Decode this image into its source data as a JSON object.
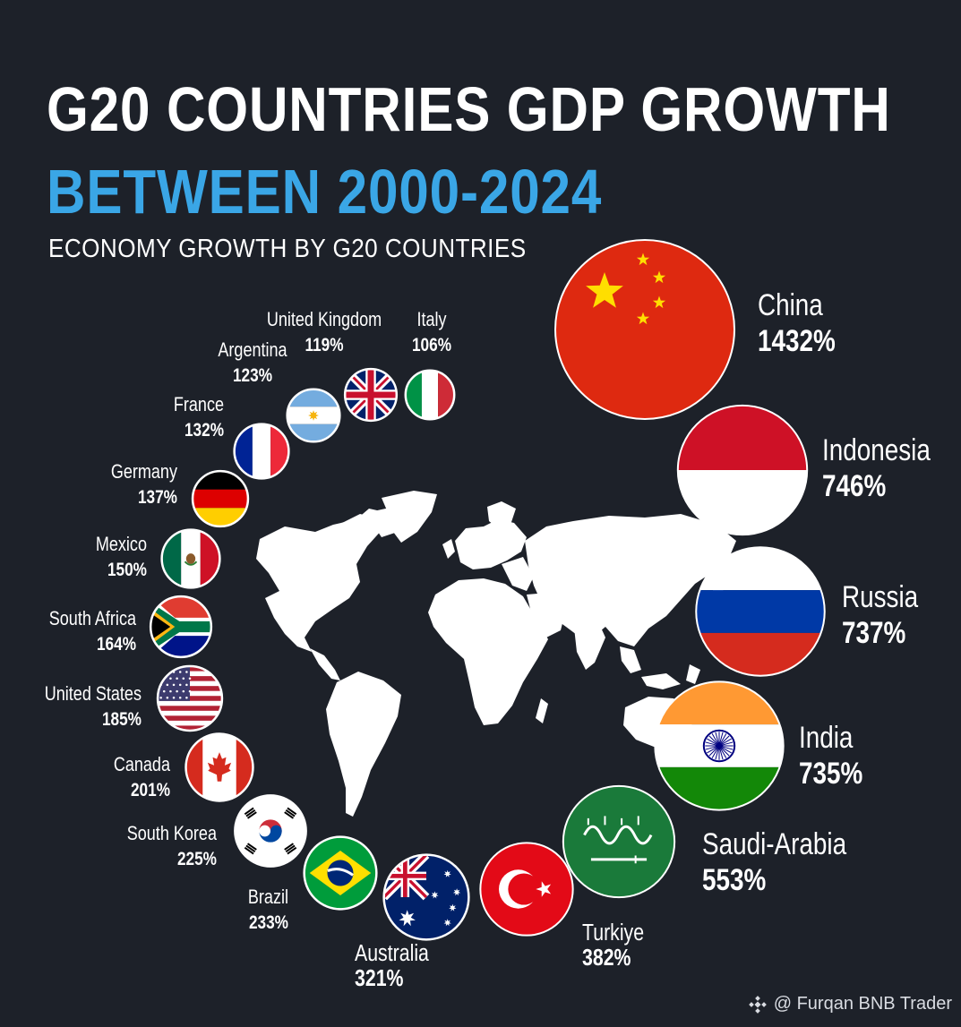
{
  "header": {
    "title": "G20 COUNTRIES GDP GROWTH",
    "subtitle": "BETWEEN 2000-2024",
    "caption": "ECONOMY GROWTH BY G20 COUNTRIES"
  },
  "watermark": {
    "text": "@ Furqan BNB Trader",
    "icon": "binance-diamond-icon"
  },
  "colors": {
    "background": "#1d2129",
    "accent": "#3aa6e6",
    "text": "#ffffff"
  },
  "chart_data": {
    "type": "bubble",
    "unit": "%",
    "categories": [
      "China",
      "Indonesia",
      "Russia",
      "India",
      "Saudi-Arabia",
      "Turkiye",
      "Australia",
      "Brazil",
      "South Korea",
      "Canada",
      "United States",
      "South Africa",
      "Mexico",
      "Germany",
      "France",
      "Argentina",
      "United Kingdom",
      "Italy"
    ],
    "values": [
      1432,
      746,
      737,
      735,
      553,
      382,
      321,
      233,
      225,
      201,
      185,
      164,
      150,
      137,
      132,
      123,
      119,
      106
    ],
    "labels": [
      "1432%",
      "746%",
      "737%",
      "735%",
      "553%",
      "382%",
      "321%",
      "233%",
      "225%",
      "201%",
      "185%",
      "164%",
      "150%",
      "137%",
      "132%",
      "123%",
      "119%",
      "106%"
    ],
    "flags": [
      "china-flag",
      "indonesia-flag",
      "russia-flag",
      "india-flag",
      "saudi-arabia-flag",
      "turkiye-flag",
      "australia-flag",
      "brazil-flag",
      "south-korea-flag",
      "canada-flag",
      "united-states-flag",
      "south-africa-flag",
      "mexico-flag",
      "germany-flag",
      "france-flag",
      "argentina-flag",
      "united-kingdom-flag",
      "italy-flag"
    ],
    "center_image": "world-map"
  }
}
